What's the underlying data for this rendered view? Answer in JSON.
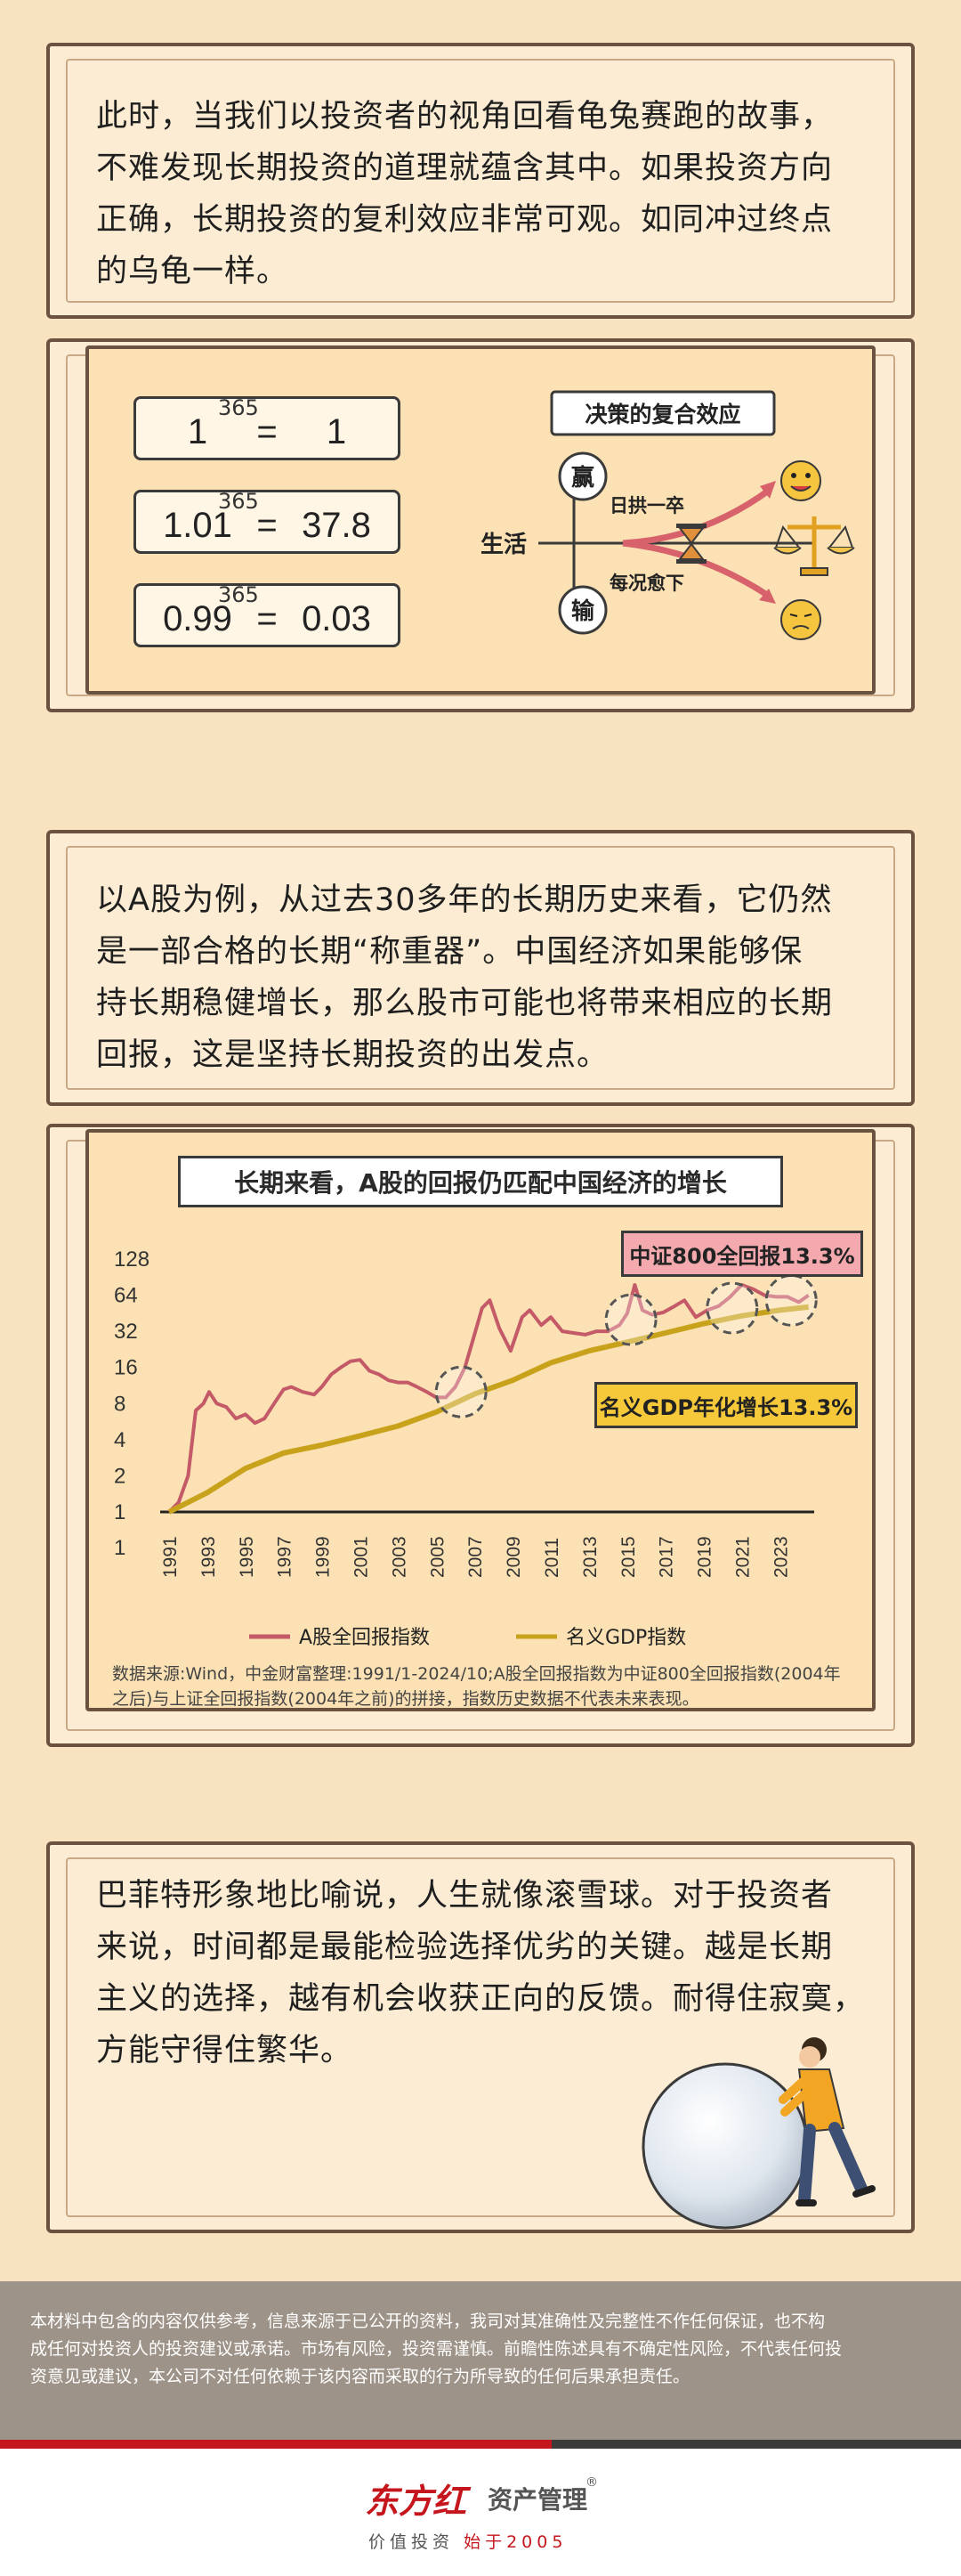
{
  "section1": {
    "lines": [
      "此时，当我们以投资者的视角回看龟兔赛跑的故事，",
      "不难发现长期投资的道理就蕴含其中。如果投资方向",
      "正确，长期投资的复利效应非常可观。如同冲过终点",
      "的乌龟一样。"
    ]
  },
  "formulas": [
    {
      "base": "1",
      "exponent": "365",
      "sign": "=",
      "result": "1"
    },
    {
      "base": "1.01",
      "exponent": "365",
      "sign": "=",
      "result": "37.8"
    },
    {
      "base": "0.99",
      "exponent": "365",
      "sign": "=",
      "result": "0.03"
    }
  ],
  "decision_diagram": {
    "title": "决策的复合效应",
    "life": "生活",
    "win": "赢",
    "lose": "输",
    "up_label": "日拱一卒",
    "down_label": "每况愈下",
    "happy_icon": "happy-face-icon",
    "sad_icon": "sad-face-icon",
    "hourglass_icon": "hourglass-icon",
    "scale_icon": "balance-scale-icon"
  },
  "section2": {
    "lines": [
      "以A股为例，从过去30多年的长期历史来看，它仍然",
      "是一部合格的长期“称重器”。中国经济如果能够保",
      "持长期稳健增长，那么股市可能也将带来相应的长期",
      "回报，这是坚持长期投资的出发点。"
    ]
  },
  "chart_data": {
    "type": "line",
    "title": "长期来看，A股的回报仍匹配中国经济的增长",
    "y_scale": "log2",
    "y_ticks": [
      "128",
      "64",
      "32",
      "16",
      "8",
      "4",
      "2",
      "1",
      "1"
    ],
    "x_ticks": [
      "1991",
      "1993",
      "1995",
      "1997",
      "1999",
      "2001",
      "2003",
      "2005",
      "2007",
      "2009",
      "2011",
      "2013",
      "2015",
      "2017",
      "2019",
      "2021",
      "2023"
    ],
    "ylim": [
      1,
      128
    ],
    "xlim": [
      1991,
      2024.8
    ],
    "series": [
      {
        "name": "A股全回报指数",
        "color": "#c45a67",
        "x": [
          1991.0,
          1991.5,
          1992.0,
          1992.4,
          1992.8,
          1993.1,
          1993.5,
          1994.0,
          1994.5,
          1995.0,
          1995.5,
          1996.0,
          1996.5,
          1997.0,
          1997.4,
          1998.0,
          1998.6,
          1999.0,
          1999.5,
          2000.0,
          2000.5,
          2001.0,
          2001.5,
          2002.0,
          2002.5,
          2003.0,
          2003.5,
          2004.0,
          2004.5,
          2005.0,
          2005.5,
          2006.0,
          2006.5,
          2007.0,
          2007.4,
          2007.8,
          2008.3,
          2008.9,
          2009.5,
          2009.9,
          2010.5,
          2011.0,
          2011.6,
          2012.2,
          2012.8,
          2013.4,
          2014.0,
          2014.6,
          2015.0,
          2015.4,
          2015.8,
          2016.3,
          2016.9,
          2017.5,
          2018.0,
          2018.6,
          2019.2,
          2019.8,
          2020.4,
          2021.0,
          2021.6,
          2022.2,
          2022.8,
          2023.4,
          2024.0,
          2024.5
        ],
        "y": [
          1.0,
          1.2,
          2.0,
          7.0,
          8.0,
          10.0,
          8.0,
          7.5,
          6.0,
          6.5,
          5.5,
          6.0,
          8.0,
          10.5,
          11.0,
          10.0,
          9.5,
          11.0,
          14.0,
          16.0,
          18.0,
          18.5,
          15.0,
          14.0,
          12.5,
          12.0,
          12.0,
          11.0,
          10.0,
          9.0,
          9.0,
          11.0,
          16.0,
          30.0,
          50.0,
          58.0,
          34.0,
          22.0,
          42.0,
          48.0,
          36.0,
          42.0,
          32.0,
          31.0,
          30.0,
          32.0,
          32.0,
          36.0,
          45.0,
          78.0,
          48.0,
          44.0,
          46.0,
          52.0,
          58.0,
          42.0,
          48.0,
          52.0,
          62.0,
          78.0,
          72.0,
          64.0,
          62.0,
          62.0,
          56.0,
          64.0
        ]
      },
      {
        "name": "名义GDP指数",
        "color": "#c9a21c",
        "x": [
          1991.0,
          1993.0,
          1995.0,
          1997.0,
          1999.0,
          2001.0,
          2003.0,
          2005.0,
          2007.0,
          2009.0,
          2011.0,
          2013.0,
          2015.0,
          2017.0,
          2019.0,
          2021.0,
          2023.0,
          2024.5
        ],
        "y": [
          1.0,
          1.45,
          2.3,
          3.1,
          3.6,
          4.3,
          5.2,
          6.8,
          9.6,
          12.5,
          17.5,
          22.0,
          26.0,
          31.0,
          37.0,
          43.0,
          48.0,
          51.0
        ]
      }
    ],
    "tags": {
      "csi800": "中证800全回报13.3%",
      "gdp": "名义GDP年化增长13.3%"
    },
    "legend": [
      "A股全回报指数",
      "名义GDP指数"
    ],
    "note_lines": [
      "数据来源:Wind，中金财富整理:1991/1-2024/10;A股全回报指数为中证800全回报指数(2004年",
      "之后)与上证全回报指数(2004年之前)的拼接，指数历史数据不代表未来表现。"
    ]
  },
  "section3": {
    "lines": [
      "巴菲特形象地比喻说，人生就像滚雪球。对于投资者",
      "来说，时间都是最能检验选择优劣的关键。越是长期",
      "主义的选择，越有机会收获正向的反馈。耐得住寂寞，",
      "方能守得住繁华。"
    ],
    "illustration": "person-pushing-snowball-icon"
  },
  "disclaimer": {
    "lines": [
      "本材料中包含的内容仅供参考，信息来源于已公开的资料，我司对其准确性及完整性不作任何保证，也不构",
      "成任何对投资人的投资建议或承诺。市场有风险，投资需谨慎。前瞻性陈述具有不确定性风险，不代表任何投",
      "资意见或建议，本公司不对任何依赖于该内容而采取的行为所导致的任何后果承担责任。"
    ]
  },
  "footer": {
    "brand_red": "东方红",
    "brand_gray": "资产管理",
    "registered": "®",
    "slogan_a": "价值投资",
    "slogan_b": "始于2005"
  },
  "colors": {
    "background": "#f7e3bf",
    "accent_red": "#c4161c",
    "stock_line": "#c45a67",
    "gdp_line": "#c9a21c"
  }
}
